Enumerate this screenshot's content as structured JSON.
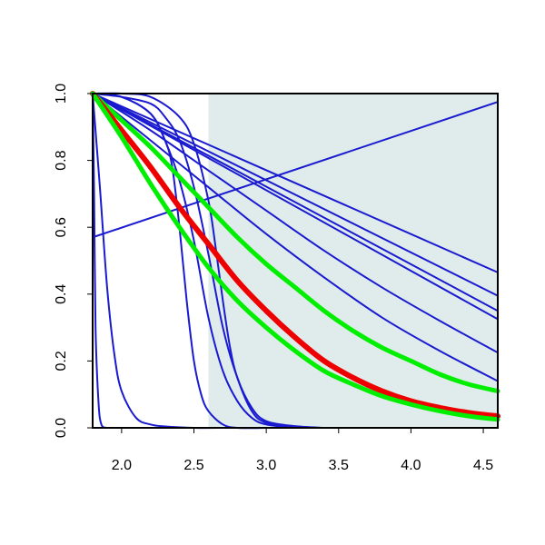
{
  "chart_data": {
    "type": "line",
    "title": "",
    "xlabel": "",
    "ylabel": "",
    "xlim": [
      1.8,
      4.6
    ],
    "ylim": [
      0.0,
      1.0
    ],
    "x_ticks": [
      2.0,
      2.5,
      3.0,
      3.5,
      4.0,
      4.5
    ],
    "x_tick_labels": [
      "2.0",
      "2.5",
      "3.0",
      "3.5",
      "4.0",
      "4.5"
    ],
    "y_ticks": [
      0.0,
      0.2,
      0.4,
      0.6,
      0.8,
      1.0
    ],
    "y_tick_labels": [
      "0.0",
      "0.2",
      "0.4",
      "0.6",
      "0.8",
      "1.0"
    ],
    "shaded_region": {
      "x_from": 2.6,
      "x_to": 4.6,
      "color": "#dfeceb"
    },
    "legend": "none",
    "grid": false,
    "colors": {
      "blue": "#1a1ad0",
      "green": "#00ee00",
      "red": "#ee0000",
      "axis": "#000000"
    },
    "series": [
      {
        "color": "blue",
        "width": 2,
        "x": [
          1.8,
          1.81,
          1.82,
          1.84,
          1.86,
          1.9
        ],
        "y": [
          1.0,
          0.7,
          0.3,
          0.08,
          0.01,
          0.0
        ]
      },
      {
        "color": "blue",
        "width": 2,
        "x": [
          1.8,
          1.85,
          1.9,
          1.95,
          2.0,
          2.1,
          2.2,
          2.3,
          2.5,
          2.7
        ],
        "y": [
          1.0,
          0.72,
          0.42,
          0.22,
          0.11,
          0.03,
          0.01,
          0.004,
          0.0,
          0.0
        ]
      },
      {
        "color": "blue",
        "width": 2,
        "x": [
          1.8,
          2.0,
          2.2,
          2.3,
          2.35,
          2.4,
          2.45,
          2.5,
          2.55,
          2.6,
          2.7,
          2.8,
          3.0
        ],
        "y": [
          1.0,
          0.99,
          0.94,
          0.86,
          0.78,
          0.6,
          0.38,
          0.2,
          0.1,
          0.05,
          0.01,
          0.0,
          0.0
        ]
      },
      {
        "color": "blue",
        "width": 2,
        "x": [
          1.8,
          2.0,
          2.2,
          2.3,
          2.4,
          2.5,
          2.6,
          2.7,
          2.8,
          2.9,
          3.0,
          3.2
        ],
        "y": [
          1.0,
          0.99,
          0.94,
          0.86,
          0.74,
          0.56,
          0.33,
          0.17,
          0.08,
          0.03,
          0.01,
          0.0
        ]
      },
      {
        "color": "blue",
        "width": 2,
        "x": [
          1.8,
          2.0,
          2.2,
          2.3,
          2.4,
          2.5,
          2.6,
          2.7,
          2.8,
          2.9,
          3.0,
          3.2,
          3.4
        ],
        "y": [
          1.0,
          0.99,
          0.97,
          0.93,
          0.86,
          0.72,
          0.52,
          0.3,
          0.15,
          0.06,
          0.02,
          0.005,
          0.0
        ]
      },
      {
        "color": "blue",
        "width": 2,
        "x": [
          1.8,
          2.0,
          2.2,
          2.4,
          2.5,
          2.6,
          2.65,
          2.7,
          2.75,
          2.8,
          2.9,
          3.0,
          3.2
        ],
        "y": [
          1.0,
          1.0,
          0.99,
          0.93,
          0.85,
          0.68,
          0.54,
          0.38,
          0.24,
          0.15,
          0.05,
          0.015,
          0.0
        ]
      },
      {
        "color": "blue",
        "width": 2,
        "x": [
          1.8,
          4.6
        ],
        "y": [
          0.57,
          0.975
        ]
      },
      {
        "color": "blue",
        "width": 2,
        "x": [
          1.8,
          4.6
        ],
        "y": [
          1.0,
          0.465
        ]
      },
      {
        "color": "blue",
        "width": 2,
        "x": [
          1.8,
          4.6
        ],
        "y": [
          1.0,
          0.395
        ]
      },
      {
        "color": "blue",
        "width": 2,
        "x": [
          1.8,
          4.6
        ],
        "y": [
          1.0,
          0.35
        ]
      },
      {
        "color": "blue",
        "width": 2,
        "x": [
          1.8,
          4.6
        ],
        "y": [
          1.0,
          0.325
        ]
      },
      {
        "color": "blue",
        "width": 2,
        "x": [
          1.8,
          2.2,
          2.6,
          3.0,
          3.4,
          3.8,
          4.2,
          4.6
        ],
        "y": [
          1.0,
          0.89,
          0.77,
          0.65,
          0.53,
          0.42,
          0.32,
          0.225
        ]
      },
      {
        "color": "blue",
        "width": 2,
        "x": [
          1.8,
          2.2,
          2.6,
          3.0,
          3.4,
          3.8,
          4.2,
          4.6
        ],
        "y": [
          1.0,
          0.86,
          0.72,
          0.58,
          0.45,
          0.33,
          0.23,
          0.14
        ]
      },
      {
        "color": "green",
        "width": 5,
        "x": [
          1.8,
          2.0,
          2.2,
          2.4,
          2.6,
          2.8,
          3.0,
          3.2,
          3.4,
          3.6,
          3.8,
          4.0,
          4.2,
          4.4,
          4.6
        ],
        "y": [
          1.0,
          0.92,
          0.84,
          0.75,
          0.66,
          0.57,
          0.49,
          0.42,
          0.35,
          0.29,
          0.24,
          0.2,
          0.16,
          0.13,
          0.11
        ]
      },
      {
        "color": "red",
        "width": 6,
        "x": [
          1.8,
          2.0,
          2.2,
          2.4,
          2.6,
          2.8,
          3.0,
          3.2,
          3.4,
          3.6,
          3.8,
          4.0,
          4.2,
          4.4,
          4.6
        ],
        "y": [
          1.0,
          0.89,
          0.78,
          0.66,
          0.55,
          0.44,
          0.35,
          0.27,
          0.2,
          0.15,
          0.11,
          0.08,
          0.06,
          0.045,
          0.035
        ]
      },
      {
        "color": "green",
        "width": 5,
        "x": [
          1.8,
          2.0,
          2.2,
          2.4,
          2.6,
          2.8,
          3.0,
          3.2,
          3.4,
          3.6,
          3.8,
          4.0,
          4.2,
          4.4,
          4.6
        ],
        "y": [
          1.0,
          0.87,
          0.73,
          0.6,
          0.48,
          0.38,
          0.3,
          0.23,
          0.17,
          0.13,
          0.095,
          0.07,
          0.05,
          0.035,
          0.025
        ]
      }
    ]
  }
}
